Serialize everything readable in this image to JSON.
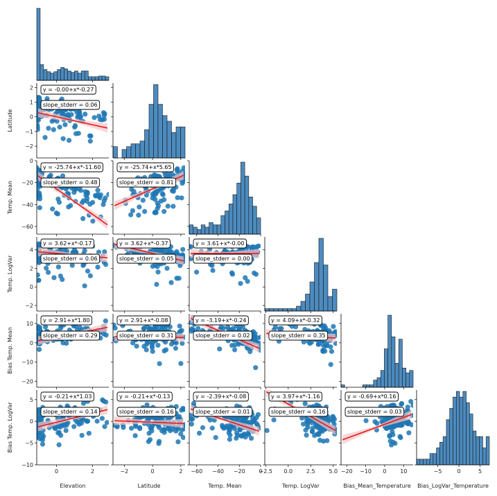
{
  "chart_data": {
    "type": "scatter",
    "variables": [
      "Elevation",
      "Latitude",
      "Temp. Mean",
      "Temp. LogVar",
      "Bias Temp. Mean",
      "Bias Temp. LogVar"
    ],
    "x_axis_labels": [
      "Elevation",
      "Latitude",
      "Temp. Mean",
      "Temp. LogVar",
      "Bias_Mean_Temperature",
      "Bias_LogVar_Temperature"
    ],
    "y_axis_labels": [
      "",
      "Latitude",
      "Temp. Mean",
      "Temp. LogVar",
      "Bias Temp. Mean",
      "Bias Temp. LogVar"
    ],
    "ranges": [
      [
        -1.1,
        2.9
      ],
      [
        -2.8,
        2.3
      ],
      [
        -67,
        0
      ],
      [
        -2.6,
        5.4
      ],
      [
        -23,
        15
      ],
      [
        -10,
        7.2
      ]
    ],
    "x_ticks": [
      [
        {
          "v": 0,
          "t": "0"
        },
        {
          "v": 2,
          "t": "2"
        }
      ],
      [
        {
          "v": -2,
          "t": "−2"
        },
        {
          "v": 0,
          "t": "0"
        },
        {
          "v": 2,
          "t": "2"
        }
      ],
      [
        {
          "v": -60,
          "t": "−60"
        },
        {
          "v": -40,
          "t": "−40"
        },
        {
          "v": -20,
          "t": "−20"
        },
        {
          "v": 0,
          "t": "0"
        }
      ],
      [
        {
          "v": -2.5,
          "t": "−2.5"
        },
        {
          "v": 0,
          "t": "0.0"
        },
        {
          "v": 2.5,
          "t": "2.5"
        },
        {
          "v": 5,
          "t": "5.0"
        }
      ],
      [
        {
          "v": -20,
          "t": "−20"
        },
        {
          "v": -10,
          "t": "−10"
        },
        {
          "v": 0,
          "t": "0"
        },
        {
          "v": 10,
          "t": "10"
        }
      ],
      [
        {
          "v": -5,
          "t": "−5"
        },
        {
          "v": 0,
          "t": "0"
        },
        {
          "v": 5,
          "t": "5"
        }
      ]
    ],
    "y_ticks": [
      [],
      [
        {
          "v": 2,
          "t": "2"
        },
        {
          "v": 1,
          "t": "1"
        },
        {
          "v": 0,
          "t": "0"
        },
        {
          "v": -1,
          "t": "−1"
        },
        {
          "v": -2,
          "t": "−2"
        }
      ],
      [
        {
          "v": 0,
          "t": "0"
        },
        {
          "v": -20,
          "t": "−20"
        },
        {
          "v": -40,
          "t": "−40"
        },
        {
          "v": -60,
          "t": "−60"
        }
      ],
      [
        {
          "v": 4,
          "t": "4"
        },
        {
          "v": 2,
          "t": "2"
        },
        {
          "v": 0,
          "t": "0"
        },
        {
          "v": -2,
          "t": "−2"
        }
      ],
      [
        {
          "v": 10,
          "t": "10"
        },
        {
          "v": 0,
          "t": "0"
        },
        {
          "v": -10,
          "t": "−10"
        },
        {
          "v": -20,
          "t": "−20"
        }
      ],
      [
        {
          "v": 5,
          "t": "5"
        },
        {
          "v": 0,
          "t": "0"
        },
        {
          "v": -5,
          "t": "−5"
        },
        {
          "v": -10,
          "t": "−10"
        }
      ]
    ],
    "diagonal_histograms": [
      [
        100,
        22,
        15,
        12,
        10,
        12,
        15,
        18,
        16,
        13,
        11,
        13,
        10,
        13,
        13,
        5,
        5,
        5,
        6,
        6,
        5
      ],
      [
        4,
        0,
        3,
        4,
        5,
        5,
        6,
        10,
        19,
        26,
        19,
        15,
        13,
        9,
        11,
        11
      ],
      [
        4,
        3,
        2,
        4,
        3,
        5,
        4,
        4,
        8,
        10,
        13,
        17,
        22,
        31,
        25,
        16,
        12,
        7
      ],
      [
        1,
        1,
        1,
        1,
        1,
        1,
        1,
        2,
        4,
        7,
        12,
        20,
        30,
        19,
        6,
        9
      ],
      [
        1,
        0,
        0,
        0,
        0,
        0,
        1,
        1,
        1,
        3,
        4,
        7,
        16,
        30,
        21,
        10,
        20,
        8,
        6,
        7
      ],
      [
        1,
        1,
        1,
        1,
        2,
        2,
        3,
        4,
        5,
        8,
        10,
        12,
        13,
        12,
        13,
        11,
        9,
        6,
        5,
        5,
        3,
        5
      ]
    ],
    "regressions": [
      {
        "row": 1,
        "col": 0,
        "equation": "y = -0.00+x*-0.27",
        "stderr": "slope_stderr = 0.06",
        "slope": -0.27,
        "intercept": 0.0
      },
      {
        "row": 2,
        "col": 0,
        "equation": "y = -25.74+x*-11.60",
        "stderr": "slope_stderr = 0.48",
        "slope": -11.6,
        "intercept": -25.74
      },
      {
        "row": 2,
        "col": 1,
        "equation": "y = -25.74+x*5.65",
        "stderr": "slope_stderr = 0.81",
        "slope": 5.65,
        "intercept": -25.74
      },
      {
        "row": 3,
        "col": 0,
        "equation": "y = 3.62+x*-0.17",
        "stderr": "slope_stderr = 0.06",
        "slope": -0.17,
        "intercept": 3.62
      },
      {
        "row": 3,
        "col": 1,
        "equation": "y = 3.62+x*-0.37",
        "stderr": "slope_stderr = 0.05",
        "slope": -0.37,
        "intercept": 3.62
      },
      {
        "row": 3,
        "col": 2,
        "equation": "y = 3.61+x*-0.00",
        "stderr": "slope_stderr = 0.00",
        "slope": 0.0,
        "intercept": 3.61
      },
      {
        "row": 4,
        "col": 0,
        "equation": "y = 2.91+x*1.80",
        "stderr": "slope_stderr = 0.29",
        "slope": 1.8,
        "intercept": 2.91
      },
      {
        "row": 4,
        "col": 1,
        "equation": "y = 2.91+x*-0.08",
        "stderr": "slope_stderr = 0.31",
        "slope": -0.08,
        "intercept": 2.91
      },
      {
        "row": 4,
        "col": 2,
        "equation": "y = -3.19+x*-0.24",
        "stderr": "slope_stderr = 0.02",
        "slope": -0.24,
        "intercept": -3.19
      },
      {
        "row": 4,
        "col": 3,
        "equation": "y = 4.09+x*-0.32",
        "stderr": "slope_stderr = 0.35",
        "slope": -0.32,
        "intercept": 4.09
      },
      {
        "row": 5,
        "col": 0,
        "equation": "y = -0.21+x*1.03",
        "stderr": "slope_stderr = 0.14",
        "slope": 1.03,
        "intercept": -0.21
      },
      {
        "row": 5,
        "col": 1,
        "equation": "y = -0.21+x*-0.13",
        "stderr": "slope_stderr = 0.16",
        "slope": -0.13,
        "intercept": -0.21
      },
      {
        "row": 5,
        "col": 2,
        "equation": "y = -2.39+x*-0.08",
        "stderr": "slope_stderr = 0.01",
        "slope": -0.08,
        "intercept": -2.39
      },
      {
        "row": 5,
        "col": 3,
        "equation": "y = 3.97+x*-1.16",
        "stderr": "slope_stderr = 0.16",
        "slope": -1.16,
        "intercept": 3.97
      },
      {
        "row": 5,
        "col": 4,
        "equation": "y = -0.69+x*0.16",
        "stderr": "slope_stderr = 0.03",
        "slope": 0.16,
        "intercept": -0.69
      }
    ],
    "colors": {
      "points": "#1f77b4",
      "histogram": "#4c8bbf",
      "regression": "#e41a1c",
      "band": "#f7c4c4"
    },
    "grid": false,
    "legend": "none"
  }
}
